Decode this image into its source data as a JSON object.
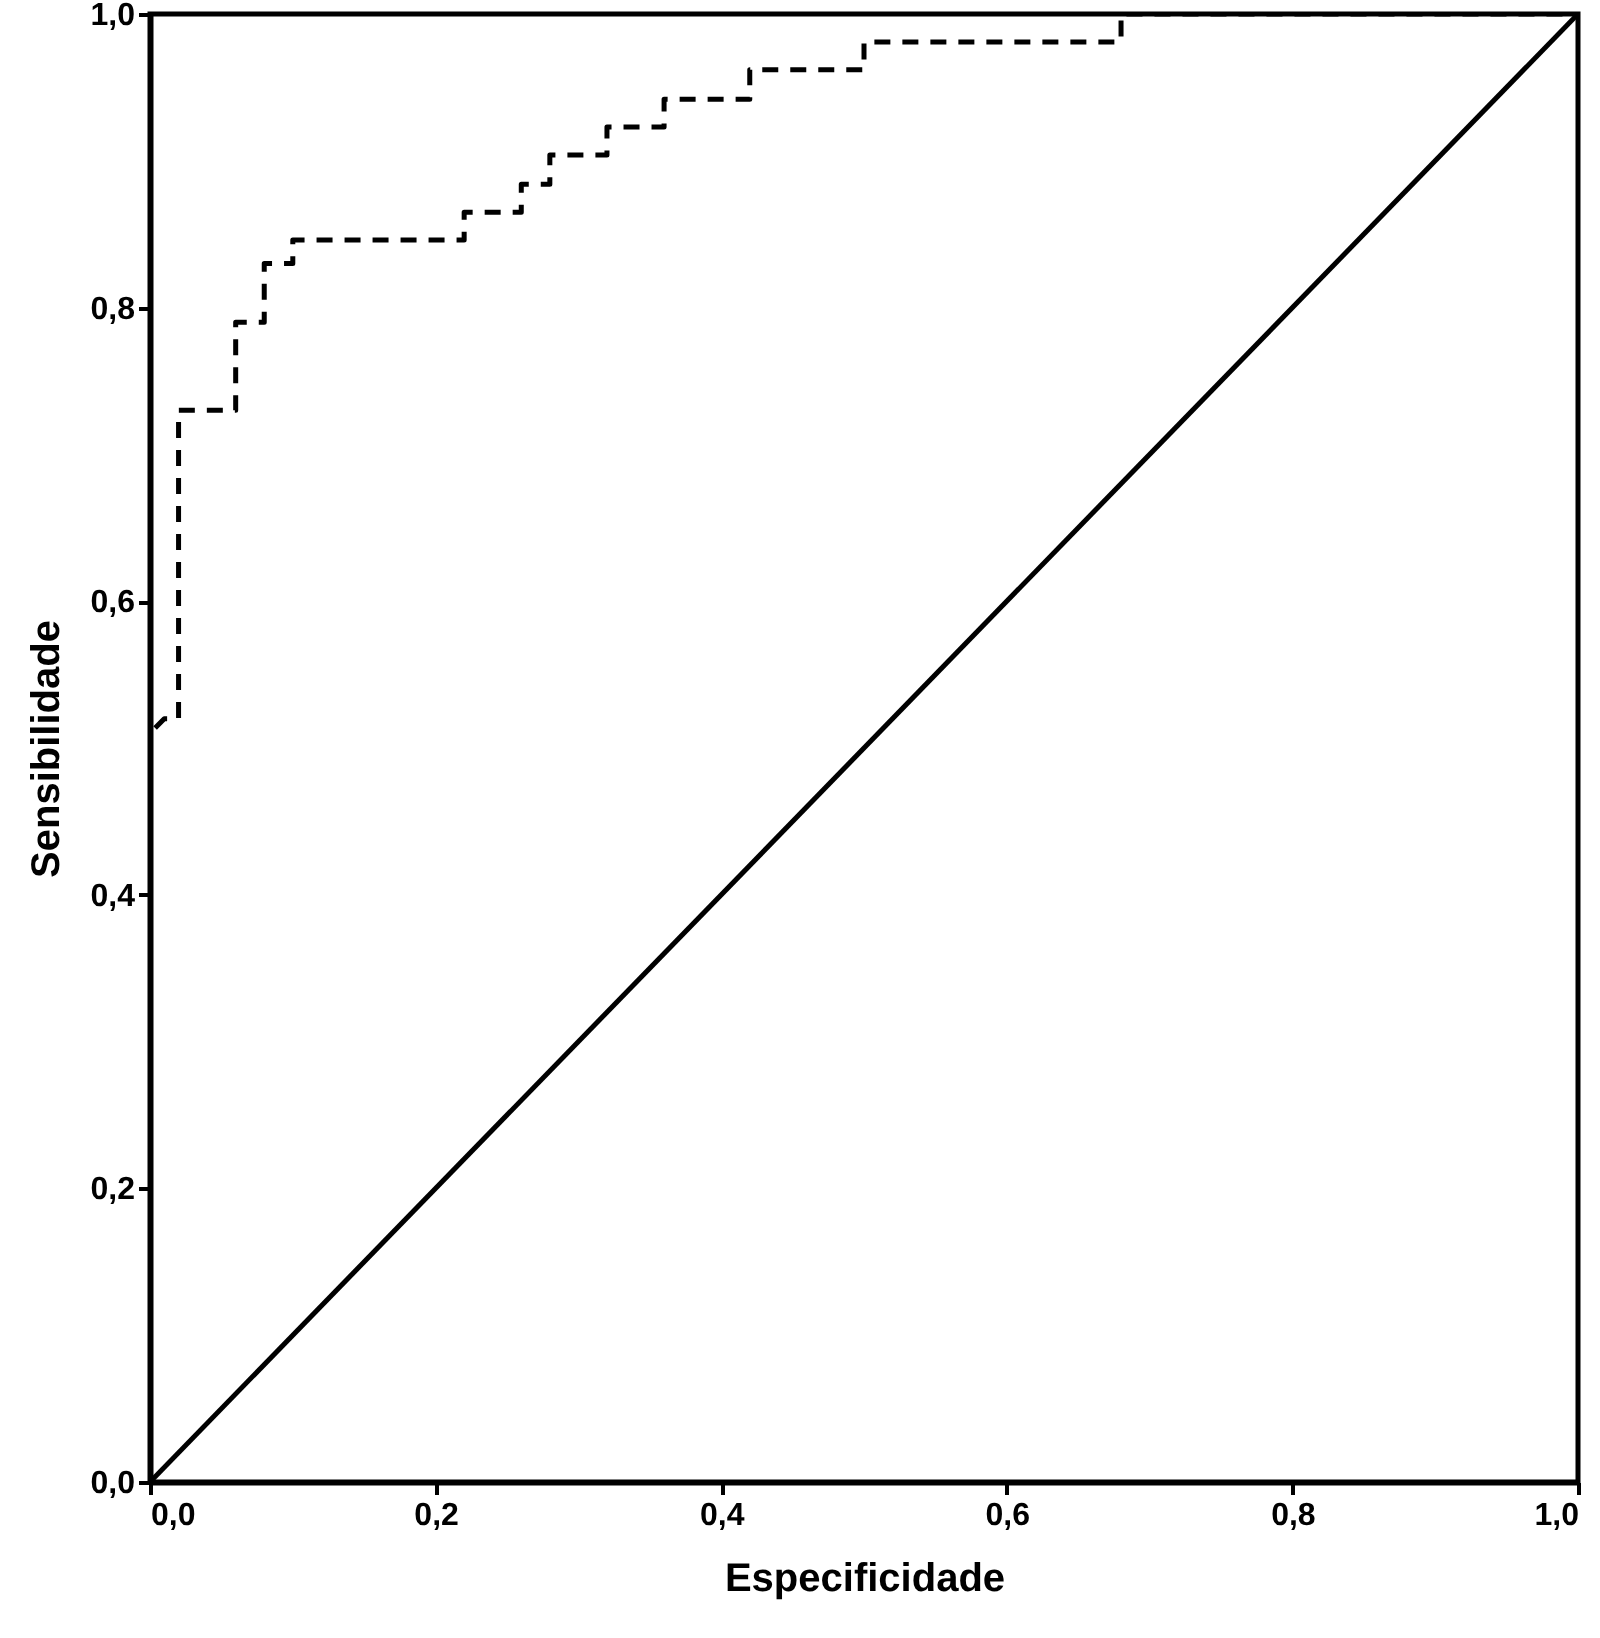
{
  "chart_data": {
    "type": "line",
    "xlabel": "Especificidade",
    "ylabel": "Sensibilidade",
    "xlim": [
      0,
      1
    ],
    "ylim": [
      0,
      1
    ],
    "xticks": [
      {
        "value": 0,
        "label": "0,0"
      },
      {
        "value": 0.2,
        "label": "0,2"
      },
      {
        "value": 0.4,
        "label": "0,4"
      },
      {
        "value": 0.6,
        "label": "0,6"
      },
      {
        "value": 0.8,
        "label": "0,8"
      },
      {
        "value": 1,
        "label": "1,0"
      }
    ],
    "yticks": [
      {
        "value": 0,
        "label": "0,0"
      },
      {
        "value": 0.2,
        "label": "0,2"
      },
      {
        "value": 0.4,
        "label": "0,4"
      },
      {
        "value": 0.6,
        "label": "0,6"
      },
      {
        "value": 0.8,
        "label": "0,8"
      },
      {
        "value": 1,
        "label": "1,0"
      }
    ],
    "grid": false,
    "marker": "none",
    "series": [
      {
        "color": "#000000",
        "line_style": "dashed",
        "x": [
          0,
          0,
          0.01,
          0.02,
          0.02,
          0.06,
          0.06,
          0.08,
          0.08,
          0.1,
          0.1,
          0.22,
          0.22,
          0.26,
          0.26,
          0.28,
          0.28,
          0.32,
          0.32,
          0.36,
          0.36,
          0.42,
          0.42,
          0.5,
          0.5,
          0.68,
          0.68,
          1
        ],
        "values": [
          0,
          0.51,
          0.52,
          0.52,
          0.73,
          0.73,
          0.79,
          0.79,
          0.83,
          0.83,
          0.846,
          0.846,
          0.865,
          0.865,
          0.884,
          0.884,
          0.904,
          0.904,
          0.923,
          0.923,
          0.942,
          0.942,
          0.962,
          0.962,
          0.981,
          0.981,
          1,
          1
        ]
      },
      {
        "color": "#000000",
        "line_style": "solid",
        "x": [
          0,
          1
        ],
        "values": [
          0,
          1
        ]
      }
    ]
  }
}
